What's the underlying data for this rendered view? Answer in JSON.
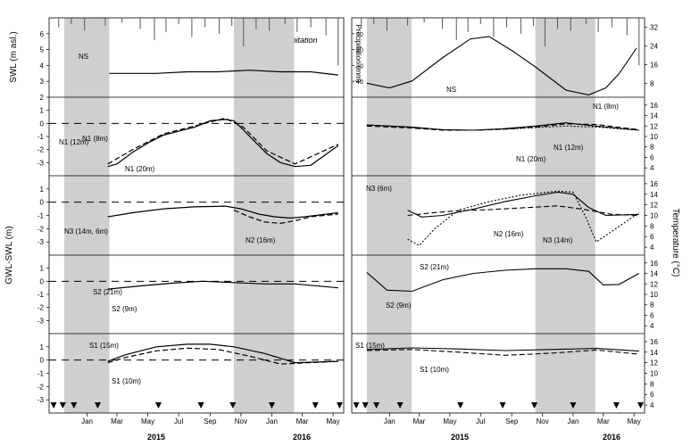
{
  "chart_data": {
    "type": "line",
    "title": "",
    "years": [
      "2015",
      "2016"
    ],
    "month_labels": [
      "Jan",
      "Mar",
      "May",
      "Jul",
      "Sep",
      "Nov",
      "Jan",
      "Mar",
      "May"
    ],
    "ylabels": {
      "swl": "SWL (m asl.)",
      "gwl": "GWL-SWL (m)",
      "precip": "Precipitation (mm)",
      "temperature": "Temperature (°C)"
    },
    "precip_annotation": "Precipitation",
    "shaded_periods": [
      [
        "2014-12-01",
        "2015-02-28"
      ],
      [
        "2015-11-01",
        "2016-02-28"
      ]
    ],
    "sampling_markers": [
      "2014-11-10",
      "2014-11-28",
      "2014-12-20",
      "2015-02-05",
      "2015-06-05",
      "2015-08-28",
      "2015-10-30",
      "2016-01-15",
      "2016-04-10",
      "2016-05-28"
    ],
    "left_ylim_top": [
      2,
      7
    ],
    "left_yticks_top": [
      2,
      3,
      4,
      5,
      6
    ],
    "left_ylim_gwl": [
      -4,
      2
    ],
    "left_yticks_gwl": [
      -3,
      -2,
      -1,
      0,
      1
    ],
    "precip_ticks": [
      10,
      20,
      30,
      40
    ],
    "temp_ticks_top": [
      8,
      16,
      24,
      32
    ],
    "temp_ticks_panel": [
      4,
      6,
      8,
      10,
      12,
      14,
      16
    ],
    "panels": [
      {
        "id": "NS",
        "left_labels": [
          "NS"
        ],
        "right_labels": [
          "NS"
        ],
        "gwl_series": [
          {
            "x": [
              "2015-02-28",
              "2015-04-15",
              "2015-06-01",
              "2015-08-01",
              "2015-10-01",
              "2015-12-01",
              "2016-02-01",
              "2016-04-01",
              "2016-05-25"
            ],
            "y": [
              3.5,
              3.5,
              3.5,
              3.6,
              3.6,
              3.7,
              3.6,
              3.6,
              3.4
            ]
          }
        ],
        "temp_series": [
          {
            "x": [
              "2014-12-01",
              "2015-01-15",
              "2015-03-01",
              "2015-05-01",
              "2015-06-25",
              "2015-08-01",
              "2015-09-15",
              "2015-11-01",
              "2016-01-01",
              "2016-02-15",
              "2016-03-20",
              "2016-04-15",
              "2016-05-20"
            ],
            "y": [
              8,
              6,
              9,
              19,
              27,
              28,
              22,
              15,
              5,
              3,
              6,
              12,
              23
            ]
          }
        ],
        "precip_x": [
          "2014-11-20",
          "2014-12-15",
          "2015-01-10",
          "2015-02-20",
          "2015-03-25",
          "2015-04-30",
          "2015-05-28",
          "2015-06-20",
          "2015-07-15",
          "2015-08-10",
          "2015-09-05",
          "2015-10-03",
          "2015-10-28",
          "2015-11-20",
          "2015-12-15",
          "2016-01-10",
          "2016-02-10",
          "2016-03-05",
          "2016-04-01",
          "2016-05-01",
          "2016-05-25"
        ],
        "precip_y": [
          6,
          4,
          8,
          5,
          3,
          7,
          14,
          9,
          4,
          12,
          6,
          10,
          5,
          18,
          7,
          8,
          4,
          9,
          6,
          11,
          30
        ]
      },
      {
        "id": "N1",
        "left_labels": [
          "N1 (12m)",
          "N1 (8m)",
          "N1 (20m)"
        ],
        "right_labels": [
          "N1 (8m)",
          "N1 (12m)",
          "N1 (20m)"
        ],
        "gwl_series": [
          {
            "name": "N1 (12m)",
            "x": [
              "2015-02-25",
              "2015-03-15",
              "2015-04-15",
              "2015-05-15",
              "2015-06-15",
              "2015-07-15",
              "2015-08-15",
              "2015-09-15",
              "2015-10-15",
              "2015-11-01",
              "2015-11-20",
              "2015-12-10",
              "2016-01-05",
              "2016-02-01",
              "2016-03-01",
              "2016-04-01",
              "2016-05-25"
            ],
            "y": [
              -3.3,
              -3.1,
              -2.2,
              -1.5,
              -0.9,
              -0.6,
              -0.3,
              0.2,
              0.3,
              0.2,
              -0.5,
              -1.3,
              -2.3,
              -3.0,
              -3.3,
              -3.2,
              -1.7
            ]
          },
          {
            "name": "N1 (8m)",
            "x": [
              "2015-02-25",
              "2015-04-15",
              "2015-06-15",
              "2015-08-15",
              "2015-10-15",
              "2015-11-20",
              "2016-01-05",
              "2016-03-01",
              "2016-05-25"
            ],
            "y": [
              -3.1,
              -2.0,
              -0.8,
              -0.2,
              0.4,
              -0.3,
              -2.1,
              -3.1,
              -1.6
            ]
          }
        ],
        "temp_series": [
          {
            "name": "N1 (8m)",
            "x": [
              "2014-12-01",
              "2015-02-28",
              "2015-05-01",
              "2015-07-01",
              "2015-09-01",
              "2015-11-01",
              "2016-01-01",
              "2016-03-01",
              "2016-05-25"
            ],
            "y": [
              12.2,
              11.8,
              11.3,
              11.2,
              11.5,
              12.0,
              12.6,
              12.0,
              11.2
            ]
          },
          {
            "name": "N1 (12m)",
            "x": [
              "2014-12-01",
              "2015-02-28",
              "2015-05-01",
              "2015-07-01",
              "2015-09-01",
              "2015-11-01",
              "2016-01-01",
              "2016-03-01",
              "2016-05-25"
            ],
            "y": [
              12.0,
              11.6,
              11.2,
              11.2,
              11.4,
              11.8,
              12.4,
              12.3,
              11.3
            ]
          },
          {
            "name": "N1 (20m)",
            "x": [
              "2014-12-01",
              "2015-02-28",
              "2015-05-01",
              "2015-07-01",
              "2015-09-01",
              "2015-11-01",
              "2016-01-01",
              "2016-03-01",
              "2016-05-25"
            ],
            "y": [
              12.2,
              11.7,
              11.3,
              11.2,
              11.4,
              11.7,
              12.0,
              11.8,
              11.2
            ]
          }
        ]
      },
      {
        "id": "N2N3",
        "left_labels": [
          "N3 (14m, 6m)",
          "N2 (16m)"
        ],
        "right_labels": [
          "N3 (6m)",
          "N2 (16m)",
          "N3 (14m)"
        ],
        "gwl_series": [
          {
            "name": "N3 (14m, 6m)",
            "x": [
              "2015-02-25",
              "2015-04-15",
              "2015-06-15",
              "2015-08-15",
              "2015-10-15",
              "2015-11-15",
              "2015-12-20",
              "2016-01-20",
              "2016-02-20",
              "2016-03-20",
              "2016-05-25"
            ],
            "y": [
              -1.1,
              -0.8,
              -0.5,
              -0.35,
              -0.3,
              -0.5,
              -0.9,
              -1.1,
              -1.2,
              -1.1,
              -0.8
            ]
          },
          {
            "name": "N2 (16m)",
            "x": [
              "2015-11-01",
              "2015-12-01",
              "2016-01-01",
              "2016-02-01",
              "2016-03-01",
              "2016-04-01",
              "2016-05-25"
            ],
            "y": [
              -0.6,
              -1.1,
              -1.5,
              -1.6,
              -1.4,
              -1.1,
              -0.9
            ]
          }
        ],
        "temp_series": [
          {
            "name": "N3 (6m)",
            "x": [
              "2015-02-20",
              "2015-03-20",
              "2015-05-01",
              "2015-07-01",
              "2015-09-01",
              "2015-11-01",
              "2015-12-15",
              "2016-01-15",
              "2016-02-15",
              "2016-03-20",
              "2016-05-25"
            ],
            "y": [
              11.0,
              9.7,
              10.0,
              11.2,
              12.6,
              13.7,
              14.4,
              14.0,
              11.5,
              10.0,
              10.2
            ]
          },
          {
            "name": "N2 (16m)",
            "x": [
              "2015-02-20",
              "2015-04-01",
              "2015-06-01",
              "2015-08-01",
              "2015-10-01",
              "2015-12-15",
              "2016-02-01",
              "2016-04-01",
              "2016-05-25"
            ],
            "y": [
              10.0,
              10.4,
              10.9,
              11.1,
              11.4,
              11.8,
              11.2,
              10.2,
              10.0
            ]
          },
          {
            "name": "N3 (14m)",
            "x": [
              "2015-02-20",
              "2015-03-15",
              "2015-04-15",
              "2015-06-01",
              "2015-08-01",
              "2015-10-01",
              "2015-12-15",
              "2016-01-15",
              "2016-02-10",
              "2016-03-01",
              "2016-04-01",
              "2016-05-25"
            ],
            "y": [
              5.5,
              4.3,
              7.5,
              11.0,
              12.6,
              13.8,
              14.6,
              14.4,
              9.5,
              5.0,
              7.0,
              10.5
            ]
          }
        ]
      },
      {
        "id": "S2",
        "left_labels": [
          "S2 (21m)",
          "S2 (9m)"
        ],
        "right_labels": [
          "S2 (21m)",
          "S2 (9m)"
        ],
        "gwl_series": [
          {
            "name": "S2 (21m)",
            "x": [
              "2015-02-25",
              "2015-05-01",
              "2015-07-01",
              "2015-09-01",
              "2015-11-01",
              "2016-01-01",
              "2016-03-01",
              "2016-05-25"
            ],
            "y": [
              -0.6,
              -0.35,
              -0.15,
              0.0,
              -0.1,
              -0.2,
              -0.2,
              -0.5
            ]
          }
        ],
        "temp_series": [
          {
            "name": "S2 (21m)",
            "x": [
              "2014-12-01",
              "2015-01-10",
              "2015-03-01",
              "2015-05-01",
              "2015-07-01",
              "2015-09-01",
              "2015-11-01",
              "2016-01-01",
              "2016-02-15",
              "2016-03-15",
              "2016-04-15",
              "2016-05-25"
            ],
            "y": [
              14.2,
              10.8,
              10.6,
              12.8,
              14.0,
              14.6,
              14.9,
              14.9,
              14.4,
              11.8,
              11.9,
              14.0
            ]
          }
        ]
      },
      {
        "id": "S1",
        "left_labels": [
          "S1 (15m)",
          "S1 (10m)"
        ],
        "right_labels": [
          "S1 (15m)",
          "S1 (10m)"
        ],
        "gwl_series": [
          {
            "name": "S1 (15m)",
            "x": [
              "2015-02-25",
              "2015-04-01",
              "2015-06-01",
              "2015-08-01",
              "2015-09-15",
              "2015-11-01",
              "2016-01-01",
              "2016-03-01",
              "2016-05-25"
            ],
            "y": [
              -0.1,
              0.4,
              1.0,
              1.2,
              1.2,
              1.0,
              0.5,
              -0.2,
              -0.1
            ]
          },
          {
            "name": "S1 (10m)",
            "x": [
              "2015-02-25",
              "2015-04-01",
              "2015-06-01",
              "2015-08-01",
              "2015-10-01",
              "2015-12-01",
              "2016-02-01",
              "2016-05-25"
            ],
            "y": [
              -0.2,
              0.2,
              0.7,
              0.9,
              0.8,
              0.3,
              -0.3,
              -0.1
            ]
          }
        ],
        "temp_series": [
          {
            "name": "S1 (15m)",
            "x": [
              "2014-12-01",
              "2015-03-01",
              "2015-06-01",
              "2015-09-01",
              "2015-12-01",
              "2016-03-01",
              "2016-05-25"
            ],
            "y": [
              14.5,
              14.8,
              14.6,
              14.3,
              14.5,
              14.7,
              14.2
            ]
          },
          {
            "name": "S1 (10m)",
            "x": [
              "2014-12-01",
              "2015-03-01",
              "2015-06-01",
              "2015-09-01",
              "2015-12-01",
              "2016-03-01",
              "2016-05-25"
            ],
            "y": [
              14.3,
              14.5,
              14.0,
              13.4,
              13.8,
              14.4,
              13.6
            ]
          }
        ]
      }
    ]
  }
}
